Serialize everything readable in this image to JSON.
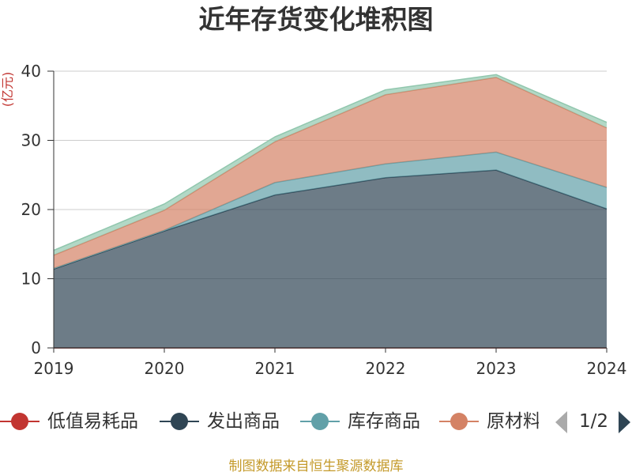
{
  "chart_data": {
    "type": "area",
    "stacked": true,
    "title": "近年存货变化堆积图",
    "xlabel": "",
    "ylabel": "(亿元)",
    "categories": [
      "2019",
      "2020",
      "2021",
      "2022",
      "2023",
      "2024"
    ],
    "ylim": [
      0,
      40
    ],
    "yticks": [
      0,
      10,
      20,
      30,
      40
    ],
    "grid": true,
    "legend_position": "bottom",
    "series": [
      {
        "name": "低值易耗品",
        "color": "#c23531",
        "values": [
          0,
          0,
          0,
          0,
          0,
          0
        ]
      },
      {
        "name": "发出商品",
        "color": "#2f4554",
        "values": [
          11.4,
          16.9,
          22.1,
          24.6,
          25.7,
          20.1
        ]
      },
      {
        "name": "库存商品",
        "color": "#61a0a8",
        "values": [
          0.1,
          0.1,
          1.8,
          2.0,
          2.6,
          3.1
        ]
      },
      {
        "name": "原材料",
        "color": "#d48265",
        "values": [
          1.9,
          2.9,
          5.9,
          10.0,
          10.8,
          8.6
        ]
      },
      {
        "color": "#91c7ae",
        "values": [
          0.7,
          0.9,
          0.7,
          0.7,
          0.4,
          0.8
        ]
      }
    ]
  },
  "legend": {
    "page_indicator": "1/2",
    "prev_icon": "triangle-left-icon",
    "next_icon": "triangle-right-icon",
    "prev_color": "#aaaaaa",
    "next_color": "#2f4554"
  },
  "source_note": "制图数据来自恒生聚源数据库",
  "colors": {
    "axis": "#333333",
    "grid": "#cccccc",
    "title": "#333333",
    "ylabel": "#c23531",
    "source_note": "#c49a2a"
  }
}
